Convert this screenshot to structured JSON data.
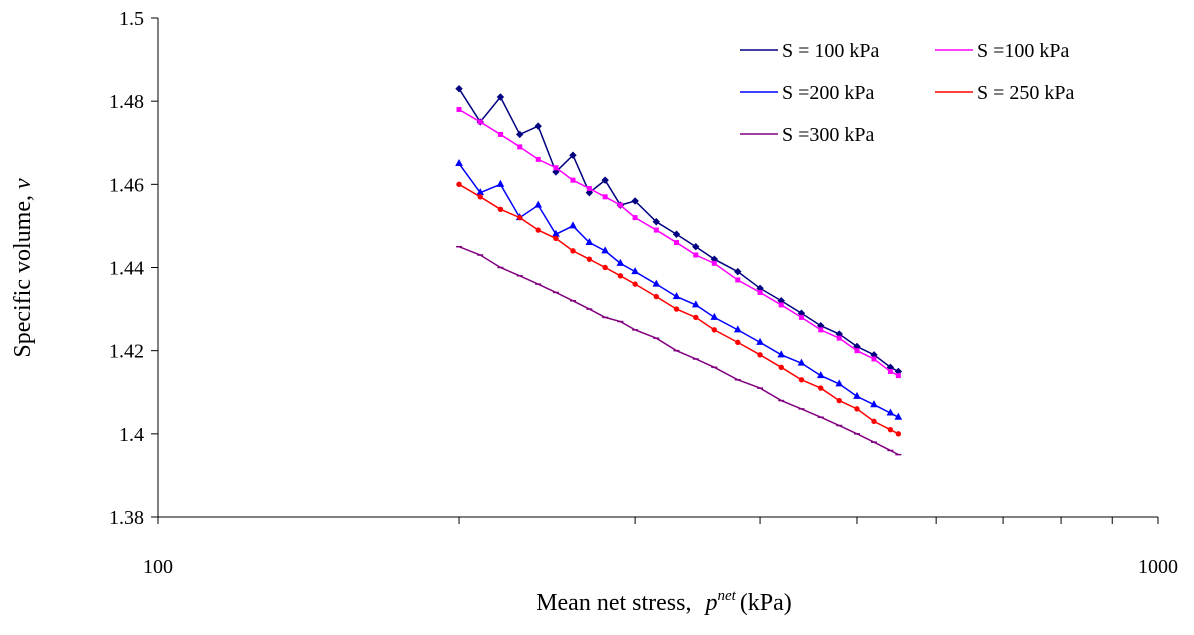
{
  "chart_data": {
    "type": "line",
    "xlabel": {
      "text": "Mean net stress,",
      "symbol": "p",
      "superscript": "net",
      "unit": "(kPa)"
    },
    "ylabel": {
      "text": "Specific volume,",
      "symbol": "v"
    },
    "log_x": true,
    "xlim": [
      100,
      1000
    ],
    "xticks": [
      100,
      1000
    ],
    "ylim": [
      1.38,
      1.5
    ],
    "yticks": [
      1.38,
      1.4,
      1.42,
      1.44,
      1.46,
      1.48,
      1.5
    ],
    "legend": "top-right",
    "x": [
      200,
      210,
      220,
      230,
      240,
      250,
      260,
      270,
      280,
      290,
      300,
      315,
      330,
      345,
      360,
      380,
      400,
      420,
      440,
      460,
      480,
      500,
      520,
      540,
      550
    ],
    "series": [
      {
        "name": "S = 100 kPa",
        "color": "#000080",
        "marker": "diamond",
        "values": [
          1.483,
          1.475,
          1.481,
          1.472,
          1.474,
          1.463,
          1.467,
          1.458,
          1.461,
          1.455,
          1.456,
          1.451,
          1.448,
          1.445,
          1.442,
          1.439,
          1.435,
          1.432,
          1.429,
          1.426,
          1.424,
          1.421,
          1.419,
          1.416,
          1.415
        ]
      },
      {
        "name": "S =100 kPa",
        "color": "#ff00ff",
        "marker": "square",
        "values": [
          1.478,
          1.475,
          1.472,
          1.469,
          1.466,
          1.464,
          1.461,
          1.459,
          1.457,
          1.455,
          1.452,
          1.449,
          1.446,
          1.443,
          1.441,
          1.437,
          1.434,
          1.431,
          1.428,
          1.425,
          1.423,
          1.42,
          1.418,
          1.415,
          1.414
        ]
      },
      {
        "name": "S =200 kPa",
        "color": "#0000ff",
        "marker": "triangle",
        "values": [
          1.465,
          1.458,
          1.46,
          1.452,
          1.455,
          1.448,
          1.45,
          1.446,
          1.444,
          1.441,
          1.439,
          1.436,
          1.433,
          1.431,
          1.428,
          1.425,
          1.422,
          1.419,
          1.417,
          1.414,
          1.412,
          1.409,
          1.407,
          1.405,
          1.404
        ]
      },
      {
        "name": "S = 250 kPa",
        "color": "#ff0000",
        "marker": "circle",
        "values": [
          1.46,
          1.457,
          1.454,
          1.452,
          1.449,
          1.447,
          1.444,
          1.442,
          1.44,
          1.438,
          1.436,
          1.433,
          1.43,
          1.428,
          1.425,
          1.422,
          1.419,
          1.416,
          1.413,
          1.411,
          1.408,
          1.406,
          1.403,
          1.401,
          1.4
        ]
      },
      {
        "name": "S =300 kPa",
        "color": "#800080",
        "marker": "dash",
        "values": [
          1.445,
          1.443,
          1.44,
          1.438,
          1.436,
          1.434,
          1.432,
          1.43,
          1.428,
          1.427,
          1.425,
          1.423,
          1.42,
          1.418,
          1.416,
          1.413,
          1.411,
          1.408,
          1.406,
          1.404,
          1.402,
          1.4,
          1.398,
          1.396,
          1.395
        ]
      }
    ]
  }
}
